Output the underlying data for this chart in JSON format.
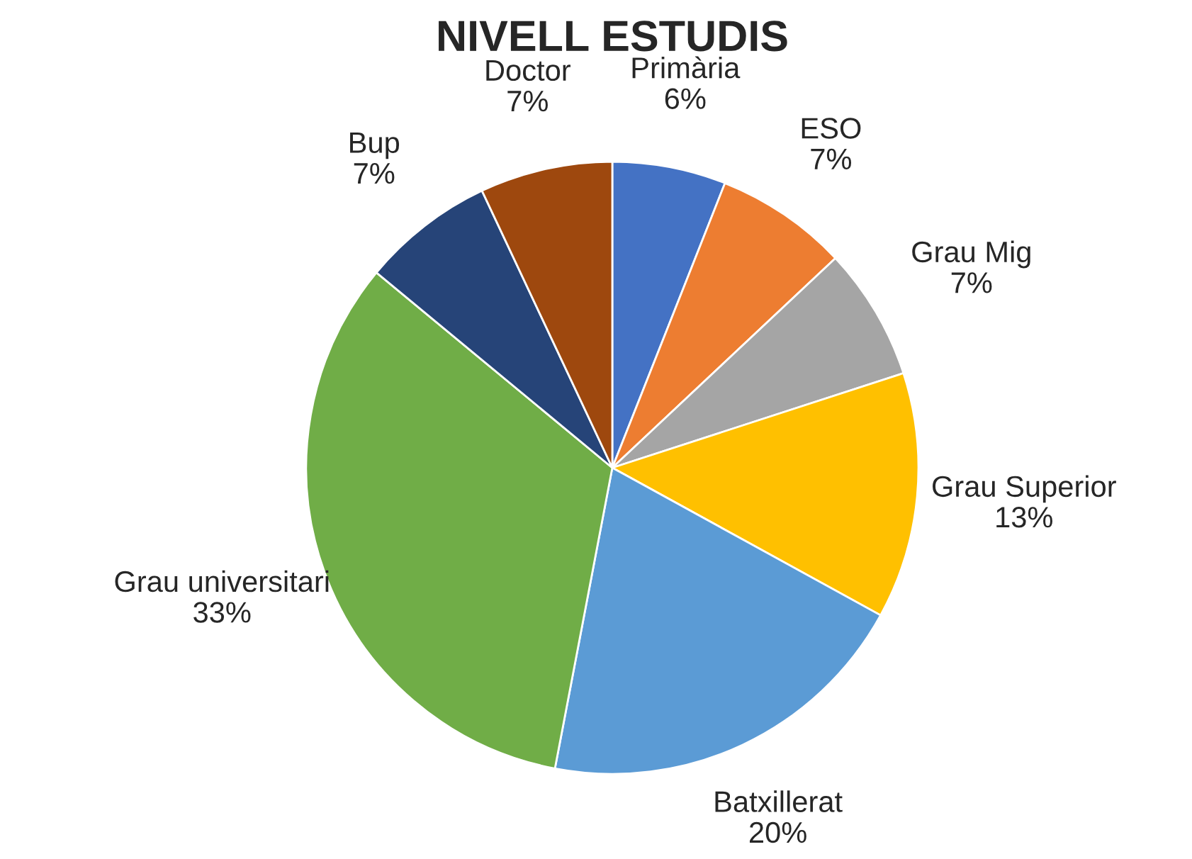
{
  "chart_data": {
    "type": "pie",
    "title": "NIVELL ESTUDIS",
    "categories": [
      "Primària",
      "ESO",
      "Grau Mig",
      "Grau Superior",
      "Batxillerat",
      "Grau universitari",
      "Bup",
      "Doctor"
    ],
    "values": [
      6,
      7,
      7,
      13,
      20,
      33,
      7,
      7
    ],
    "value_labels": [
      "6%",
      "7%",
      "7%",
      "13%",
      "20%",
      "33%",
      "7%",
      "7%"
    ],
    "colors": [
      "#4472c4",
      "#ed7d31",
      "#a5a5a5",
      "#ffc000",
      "#5b9bd5",
      "#70ad47",
      "#264478",
      "#9e480e"
    ],
    "legend": false
  }
}
